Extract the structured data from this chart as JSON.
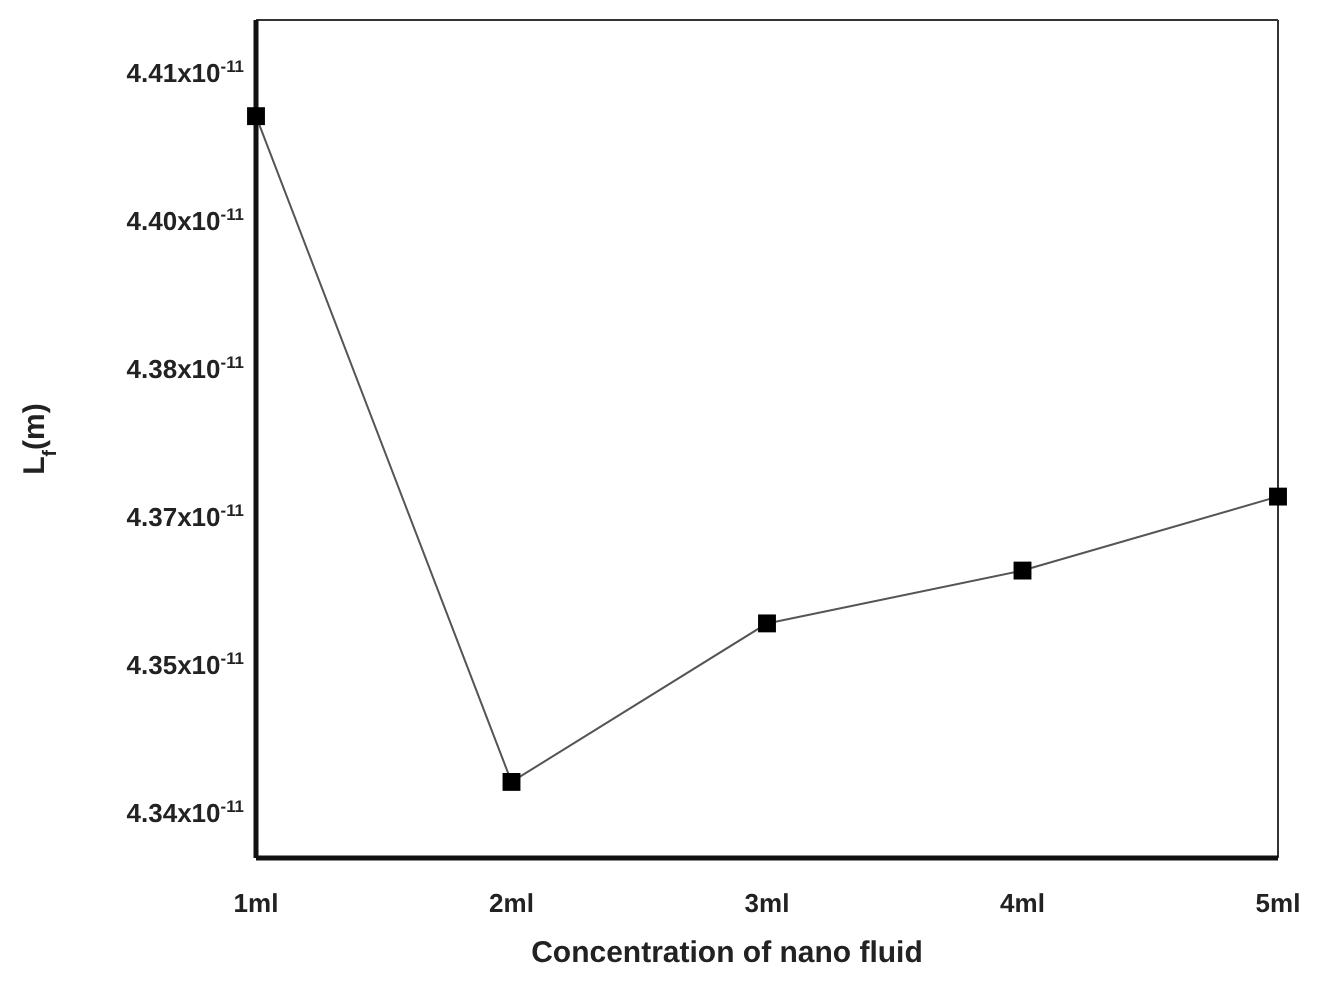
{
  "chart_data": {
    "type": "line",
    "xlabel": "Concentration of nano fluid",
    "ylabel": "L$_{f}$(m)",
    "categories": [
      "1ml",
      "2ml",
      "3ml",
      "4ml",
      "5ml"
    ],
    "series": [
      {
        "color": "#555555",
        "values": [
          4.406e-11,
          4.343e-11,
          4.358e-11,
          4.363e-11,
          4.37e-11
        ]
      }
    ],
    "ylim": [
      4.3358e-11,
      4.4151e-11
    ],
    "yticks": [
      {
        "value": 4.34e-11,
        "label": "4.34x10$^{-11}$"
      },
      {
        "value": 4.354e-11,
        "label": "4.35x10$^{-11}$"
      },
      {
        "value": 4.368e-11,
        "label": "4.37x10$^{-11}$"
      },
      {
        "value": 4.382e-11,
        "label": "4.38x10$^{-11}$"
      },
      {
        "value": 4.396e-11,
        "label": "4.40x10$^{-11}$"
      },
      {
        "value": 4.41e-11,
        "label": "4.41x10$^{-11}$"
      }
    ],
    "marker": "square",
    "line_style": "solid"
  }
}
